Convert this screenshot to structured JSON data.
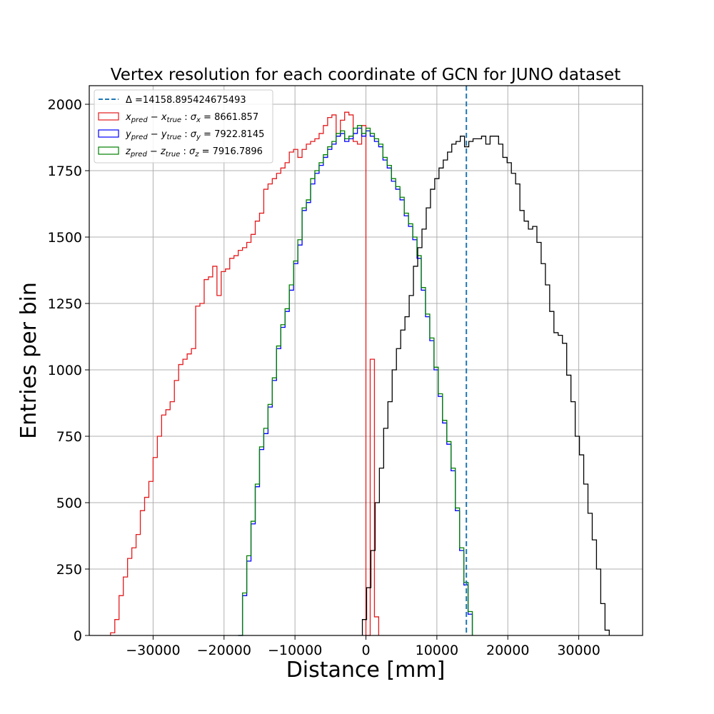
{
  "chart_data": {
    "type": "histogram",
    "title": "Vertex resolution for each coordinate of GCN for JUNO dataset",
    "xlabel": "Distance [mm]",
    "ylabel": "Entries per bin",
    "xlim": [
      -39000,
      39000
    ],
    "ylim": [
      0,
      2070
    ],
    "x_ticks": [
      -30000,
      -20000,
      -10000,
      0,
      10000,
      20000,
      30000
    ],
    "x_tick_labels": [
      "−30000",
      "−20000",
      "−10000",
      "0",
      "10000",
      "20000",
      "30000"
    ],
    "y_ticks": [
      0,
      250,
      500,
      750,
      1000,
      1250,
      1500,
      1750,
      2000
    ],
    "y_tick_labels": [
      "0",
      "250",
      "500",
      "750",
      "1000",
      "1250",
      "1500",
      "1750",
      "2000"
    ],
    "grid": true,
    "legend_position": "upper-left",
    "delta_line": {
      "x": 14158.895424675493,
      "color": "#1f77b4",
      "label": "Δ =14158.895424675493"
    },
    "legend": [
      {
        "kind": "line",
        "color": "#1f77b4",
        "label": "Δ =14158.895424675493"
      },
      {
        "kind": "box",
        "color": "#e41a1c",
        "var": "x",
        "sigma_var": "x",
        "value": "8661.857"
      },
      {
        "kind": "box",
        "color": "#0000ff",
        "var": "y",
        "sigma_var": "y",
        "value": "7922.8145"
      },
      {
        "kind": "box",
        "color": "#008000",
        "var": "z",
        "sigma_var": "z",
        "value": "7916.7896"
      }
    ],
    "legend_sub": {
      "pred": "pred",
      "true": "true"
    },
    "series": [
      {
        "color": "#e41a1c",
        "x_start": -36000,
        "bin_width": 600,
        "values": [
          10,
          60,
          150,
          220,
          290,
          330,
          380,
          470,
          520,
          580,
          670,
          750,
          830,
          850,
          880,
          960,
          1020,
          1040,
          1060,
          1080,
          1240,
          1250,
          1340,
          1350,
          1390,
          1280,
          1370,
          1380,
          1420,
          1430,
          1450,
          1460,
          1480,
          1510,
          1560,
          1590,
          1680,
          1700,
          1720,
          1740,
          1760,
          1780,
          1820,
          1830,
          1800,
          1830,
          1850,
          1860,
          1870,
          1890,
          1920,
          1950,
          1960,
          1880,
          1940,
          1970,
          1960,
          1860,
          1850,
          1920,
          0,
          1040,
          70
        ]
      },
      {
        "color": "#0000ff",
        "x_start": -18000,
        "bin_width": 600,
        "values": [
          0,
          150,
          280,
          420,
          560,
          700,
          760,
          860,
          960,
          1080,
          1160,
          1220,
          1300,
          1400,
          1470,
          1600,
          1630,
          1700,
          1740,
          1770,
          1800,
          1830,
          1850,
          1880,
          1890,
          1860,
          1870,
          1890,
          1910,
          1880,
          1900,
          1880,
          1860,
          1840,
          1790,
          1760,
          1710,
          1680,
          1640,
          1580,
          1540,
          1490,
          1420,
          1300,
          1200,
          1110,
          1000,
          900,
          800,
          720,
          620,
          470,
          320,
          190,
          80
        ]
      },
      {
        "color": "#008000",
        "x_start": -18000,
        "bin_width": 600,
        "values": [
          0,
          160,
          300,
          430,
          570,
          710,
          780,
          870,
          970,
          1090,
          1170,
          1230,
          1320,
          1410,
          1490,
          1610,
          1640,
          1720,
          1750,
          1780,
          1810,
          1840,
          1860,
          1890,
          1900,
          1870,
          1880,
          1910,
          1920,
          1890,
          1910,
          1890,
          1870,
          1850,
          1800,
          1770,
          1720,
          1690,
          1650,
          1590,
          1550,
          1500,
          1430,
          1310,
          1210,
          1120,
          1010,
          910,
          810,
          730,
          630,
          480,
          330,
          200,
          90
        ]
      },
      {
        "color": "#000000",
        "x_start": -500,
        "bin_width": 600,
        "values": [
          60,
          180,
          320,
          500,
          630,
          780,
          880,
          1000,
          1080,
          1150,
          1200,
          1280,
          1390,
          1460,
          1530,
          1610,
          1680,
          1720,
          1760,
          1790,
          1820,
          1850,
          1860,
          1880,
          1840,
          1860,
          1870,
          1870,
          1880,
          1850,
          1880,
          1880,
          1850,
          1800,
          1780,
          1740,
          1700,
          1600,
          1560,
          1530,
          1540,
          1480,
          1400,
          1320,
          1220,
          1140,
          1130,
          1100,
          980,
          880,
          750,
          680,
          570,
          460,
          360,
          250,
          120,
          20
        ]
      }
    ]
  }
}
